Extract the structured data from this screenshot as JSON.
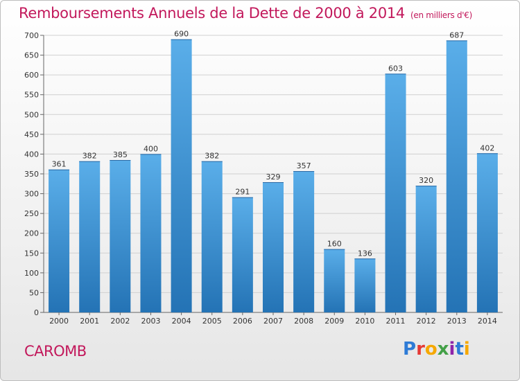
{
  "header": {
    "title": "Remboursements Annuels de la Dette de 2000 à 2014",
    "unit": "(en milliers d'€)"
  },
  "footer": {
    "commune": "CAROMB",
    "logo": "Proxiti"
  },
  "colors": {
    "title": "#c2185b",
    "bar_top": "#5aaee9",
    "bar_bottom": "#2473b5",
    "grid": "#d0d0d0"
  },
  "chart_data": {
    "type": "bar",
    "title": "Remboursements Annuels de la Dette de 2000 à 2014",
    "subtitle": "(en milliers d'€)",
    "xlabel": "",
    "ylabel": "",
    "categories": [
      "2000",
      "2001",
      "2002",
      "2003",
      "2004",
      "2005",
      "2006",
      "2007",
      "2008",
      "2009",
      "2010",
      "2011",
      "2012",
      "2013",
      "2014"
    ],
    "values": [
      361,
      382,
      385,
      400,
      690,
      382,
      291,
      329,
      357,
      160,
      136,
      603,
      320,
      687,
      402
    ],
    "ylim": [
      0,
      700
    ],
    "yticks": [
      0,
      50,
      100,
      150,
      200,
      250,
      300,
      350,
      400,
      450,
      500,
      550,
      600,
      650,
      700
    ],
    "grid": true,
    "data_labels": true
  }
}
